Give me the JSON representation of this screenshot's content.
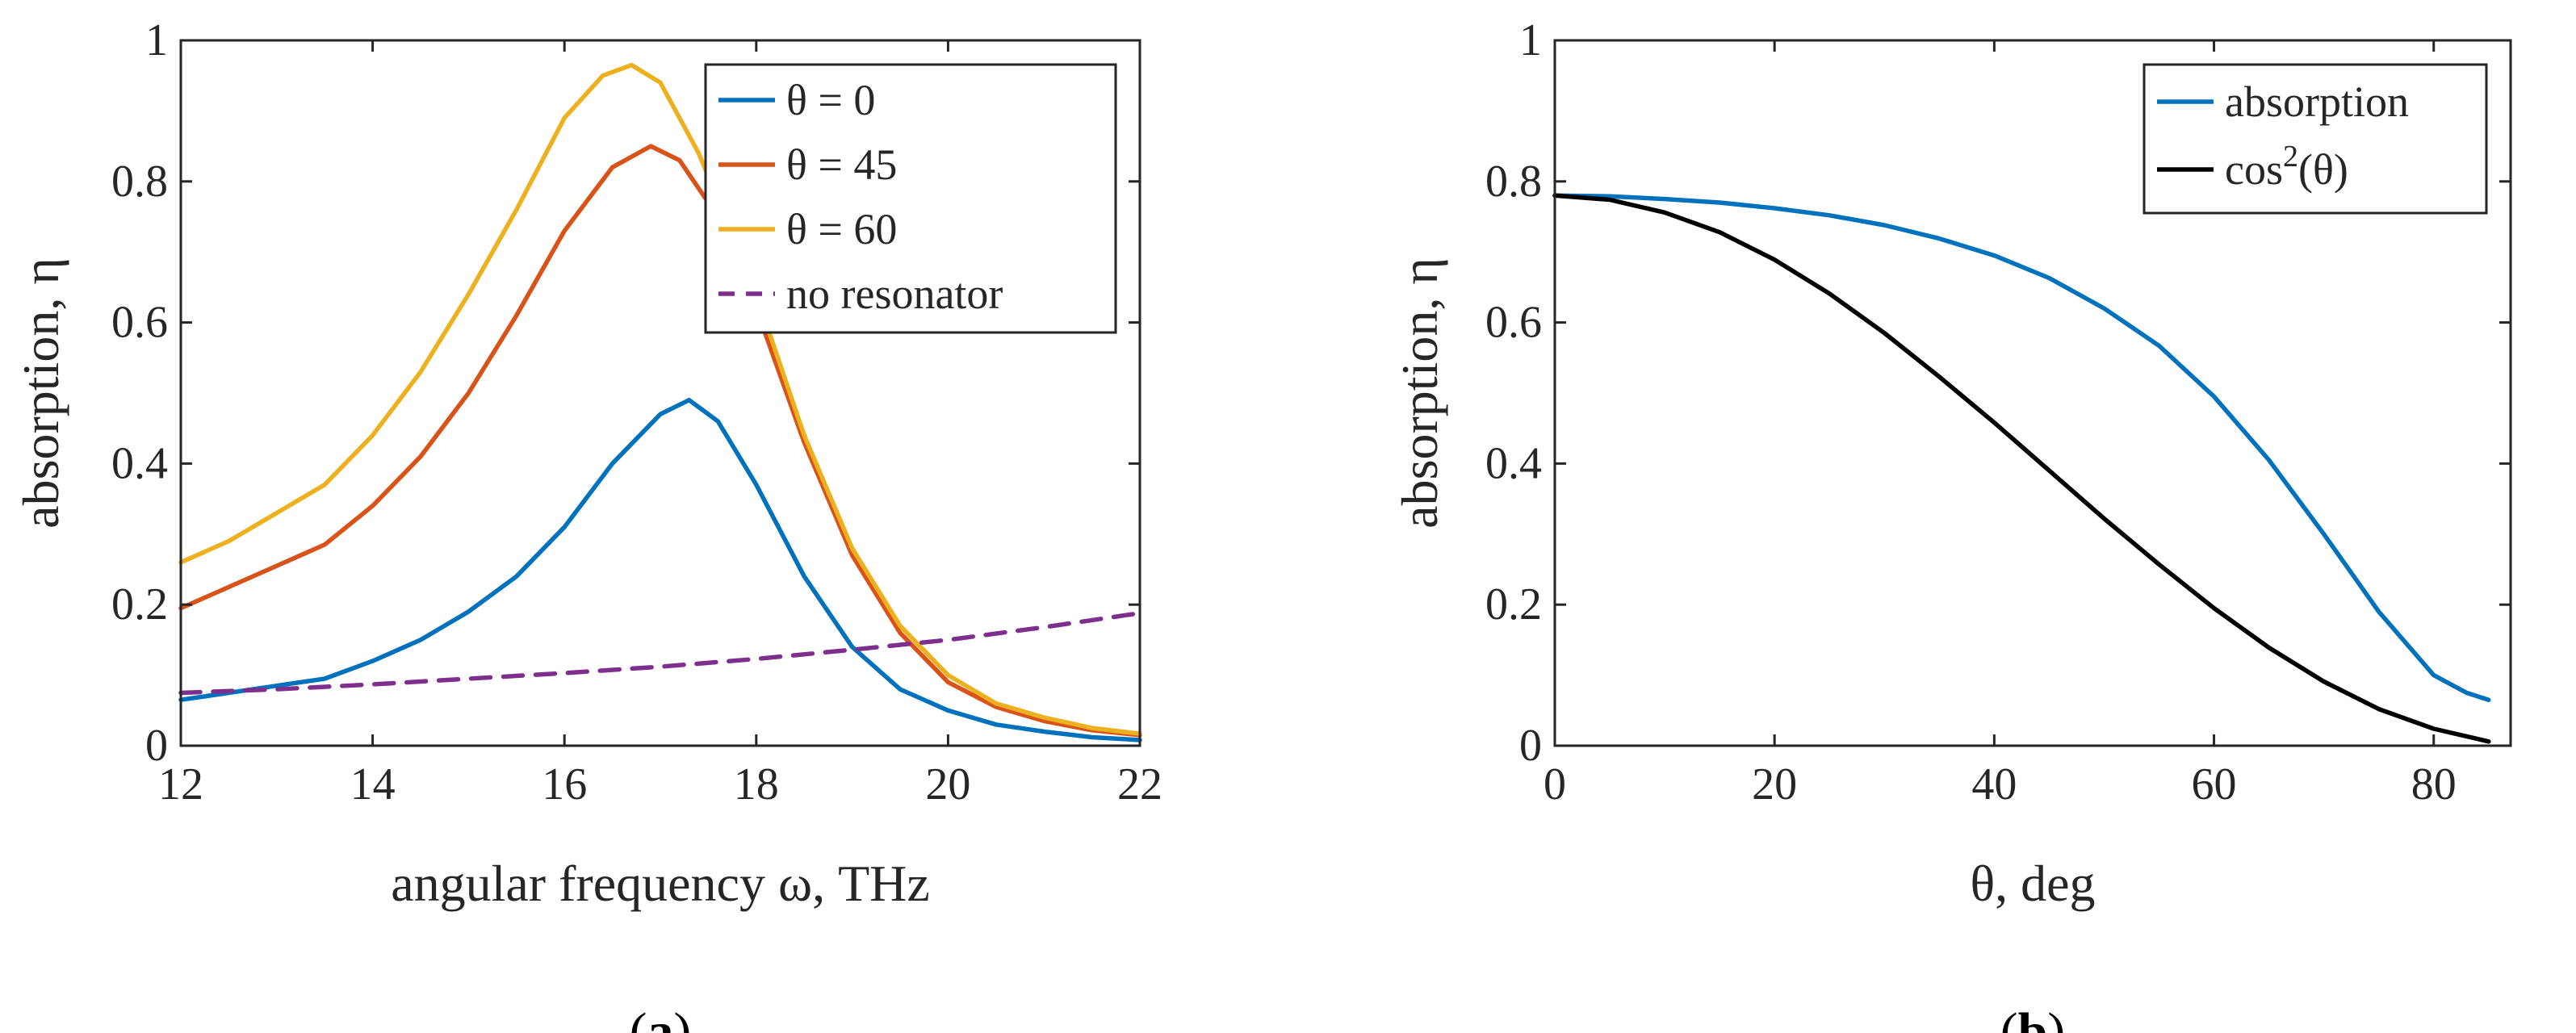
{
  "chart_data": [
    {
      "type": "line",
      "caption": "a",
      "xlabel": "angular frequency ω, THz",
      "ylabel": "absorption, η",
      "xlim": [
        12,
        22
      ],
      "ylim": [
        0,
        1
      ],
      "xticks": [
        12,
        14,
        16,
        18,
        20,
        22
      ],
      "yticks": [
        0,
        0.2,
        0.4,
        0.6,
        0.8,
        1
      ],
      "ytick_labels": [
        "0",
        "0.2",
        "0.4",
        "0.6",
        "0.8",
        "1"
      ],
      "legend_position": "top-right",
      "series": [
        {
          "name": "θ = 0",
          "color": "#0072BD",
          "dash": "solid",
          "x": [
            12,
            12.5,
            13,
            13.5,
            14,
            14.5,
            15,
            15.5,
            16,
            16.5,
            17,
            17.3,
            17.6,
            18,
            18.5,
            19,
            19.5,
            20,
            20.5,
            21,
            21.5,
            22
          ],
          "y": [
            0.065,
            0.075,
            0.085,
            0.095,
            0.12,
            0.15,
            0.19,
            0.24,
            0.31,
            0.4,
            0.47,
            0.49,
            0.46,
            0.37,
            0.24,
            0.14,
            0.08,
            0.05,
            0.03,
            0.02,
            0.012,
            0.008
          ]
        },
        {
          "name": "θ = 45",
          "color": "#D95319",
          "dash": "solid",
          "x": [
            12,
            12.5,
            13,
            13.5,
            14,
            14.5,
            15,
            15.5,
            16,
            16.5,
            16.9,
            17.2,
            17.5,
            18,
            18.5,
            19,
            19.5,
            20,
            20.5,
            21,
            21.5,
            22
          ],
          "y": [
            0.195,
            0.225,
            0.255,
            0.285,
            0.34,
            0.41,
            0.5,
            0.61,
            0.73,
            0.82,
            0.85,
            0.83,
            0.77,
            0.62,
            0.43,
            0.27,
            0.16,
            0.09,
            0.055,
            0.035,
            0.022,
            0.015
          ]
        },
        {
          "name": "θ = 60",
          "color": "#EDB120",
          "dash": "solid",
          "x": [
            12,
            12.5,
            13,
            13.5,
            14,
            14.5,
            15,
            15.5,
            16,
            16.4,
            16.7,
            17,
            17.4,
            18,
            18.5,
            19,
            19.5,
            20,
            20.5,
            21,
            21.5,
            22
          ],
          "y": [
            0.26,
            0.29,
            0.33,
            0.37,
            0.44,
            0.53,
            0.64,
            0.76,
            0.89,
            0.95,
            0.965,
            0.94,
            0.84,
            0.64,
            0.44,
            0.28,
            0.17,
            0.1,
            0.06,
            0.04,
            0.025,
            0.017
          ]
        },
        {
          "name": "no resonator",
          "color": "#7E2F8E",
          "dash": "dashed",
          "x": [
            12,
            13,
            14,
            15,
            16,
            17,
            18,
            19,
            20,
            21,
            22
          ],
          "y": [
            0.075,
            0.08,
            0.087,
            0.095,
            0.103,
            0.112,
            0.123,
            0.136,
            0.15,
            0.168,
            0.188
          ]
        }
      ]
    },
    {
      "type": "line",
      "caption": "b",
      "xlabel": "θ, deg",
      "ylabel": "absorption, η",
      "xlim": [
        0,
        87
      ],
      "ylim": [
        0,
        1
      ],
      "xticks": [
        0,
        20,
        40,
        60,
        80
      ],
      "yticks": [
        0,
        0.2,
        0.4,
        0.6,
        0.8,
        1
      ],
      "ytick_labels": [
        "0",
        "0.2",
        "0.4",
        "0.6",
        "0.8",
        "1"
      ],
      "legend_position": "top-right",
      "series": [
        {
          "name": "absorption",
          "color": "#0072BD",
          "dash": "solid",
          "x": [
            0,
            5,
            10,
            15,
            20,
            25,
            30,
            35,
            40,
            45,
            50,
            55,
            60,
            65,
            70,
            75,
            80,
            83,
            85
          ],
          "y": [
            0.78,
            0.779,
            0.775,
            0.77,
            0.762,
            0.752,
            0.738,
            0.719,
            0.695,
            0.663,
            0.62,
            0.567,
            0.495,
            0.405,
            0.3,
            0.19,
            0.1,
            0.075,
            0.065
          ]
        },
        {
          "name": "cos²(θ)",
          "color": "#000000",
          "dash": "solid",
          "x": [
            0,
            5,
            10,
            15,
            20,
            25,
            30,
            35,
            40,
            45,
            50,
            55,
            60,
            65,
            70,
            75,
            80,
            85
          ],
          "y": [
            0.78,
            0.774,
            0.756,
            0.728,
            0.689,
            0.641,
            0.585,
            0.523,
            0.458,
            0.39,
            0.322,
            0.257,
            0.195,
            0.139,
            0.091,
            0.052,
            0.024,
            0.006
          ]
        }
      ]
    }
  ],
  "legend_b_cos": {
    "base": "cos",
    "sup": "2",
    "arg": "(θ)"
  }
}
